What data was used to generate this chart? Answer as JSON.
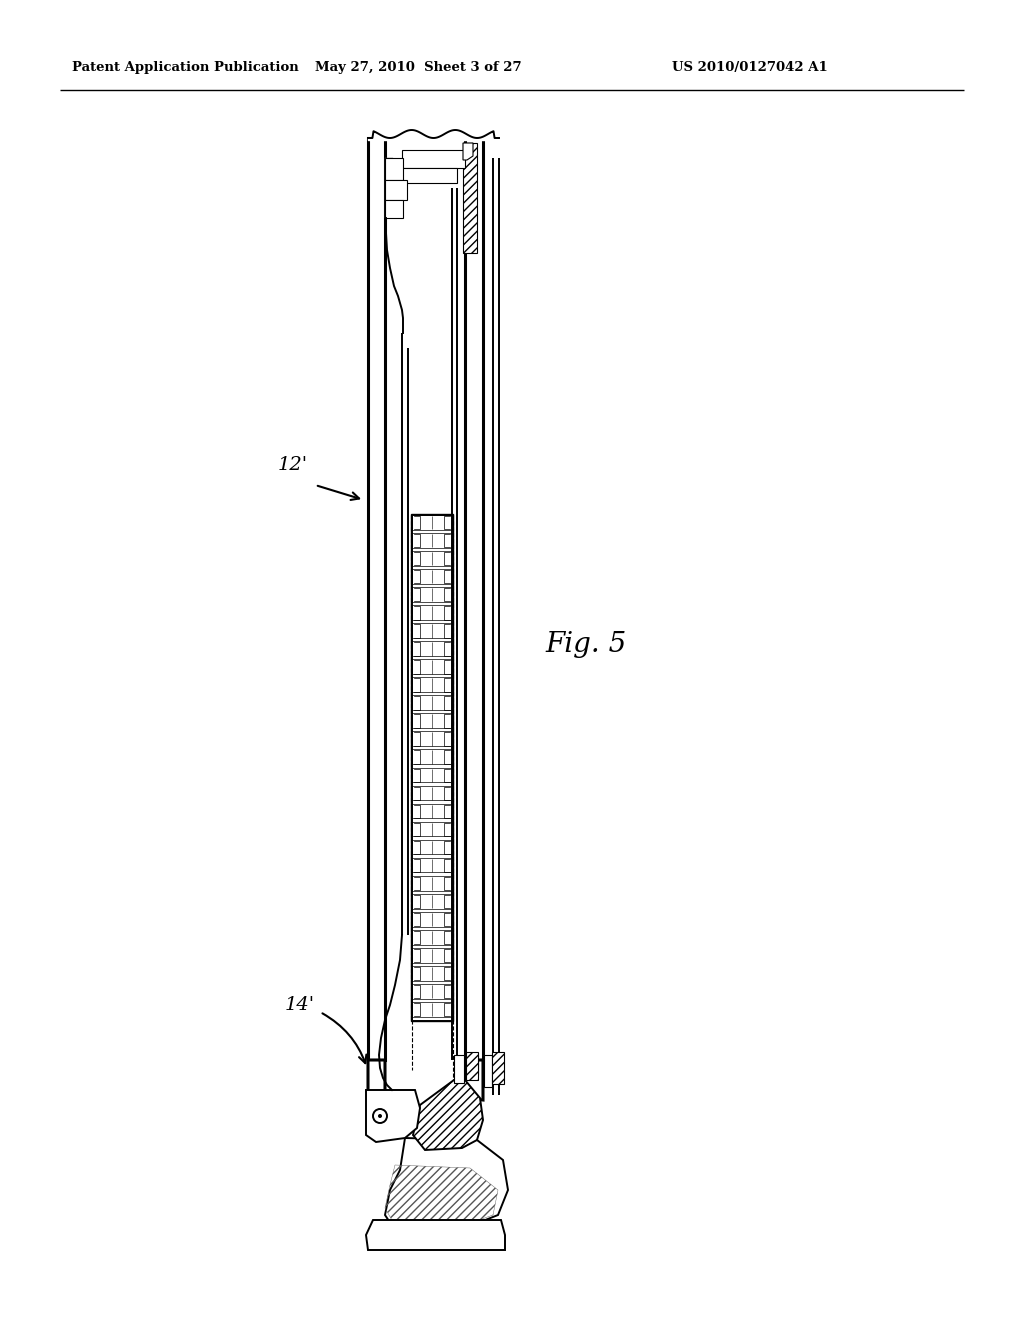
{
  "title_left": "Patent Application Publication",
  "title_center": "May 27, 2010  Sheet 3 of 27",
  "title_right": "US 2010/0127042 A1",
  "label_12": "12'",
  "label_14": "14'",
  "fig_label": "Fig. 5",
  "bg_color": "#ffffff",
  "line_color": "#000000",
  "lw_outer": 2.2,
  "lw_main": 1.4,
  "lw_thin": 0.8,
  "lw_micro": 0.5
}
